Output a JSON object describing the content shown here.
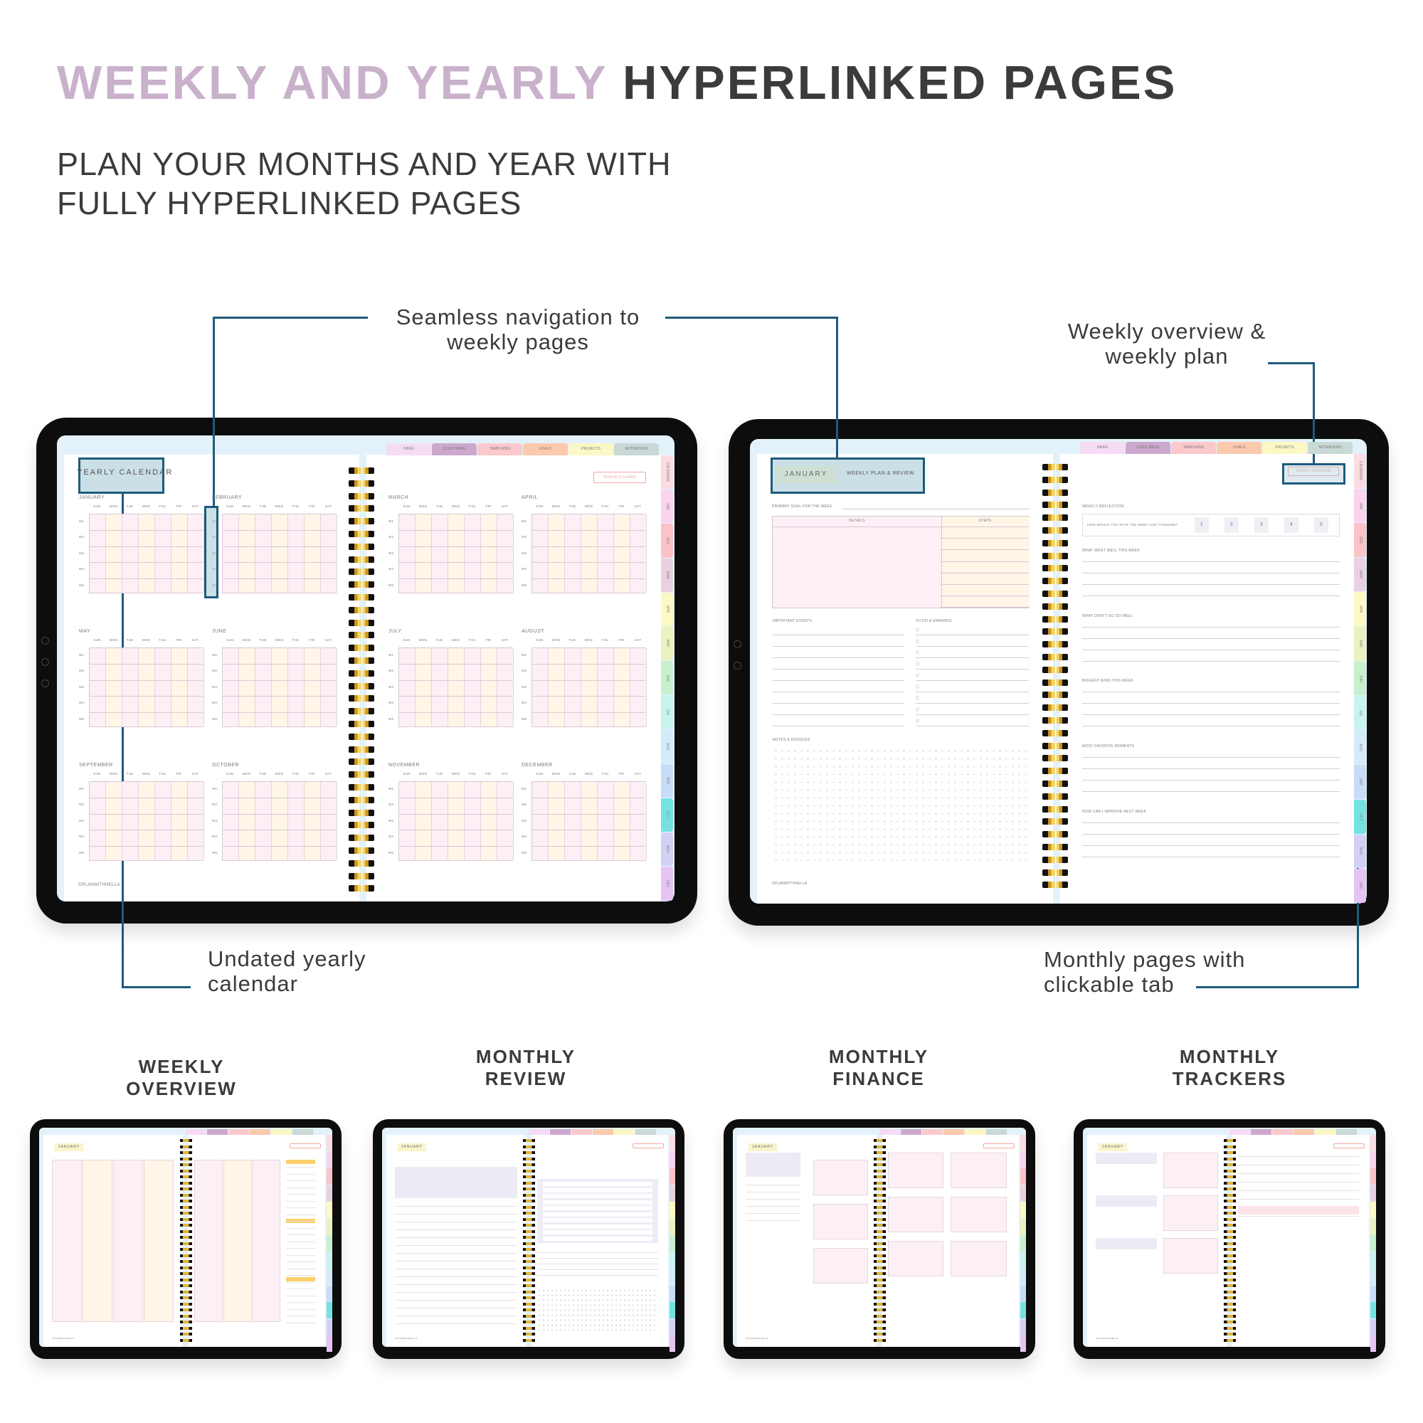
{
  "header": {
    "title_accent": "WEEKLY AND YEARLY",
    "title_main": "HYPERLINKED PAGES",
    "subtitle_line1": "PLAN YOUR MONTHS AND YEAR WITH",
    "subtitle_line2": "FULLY HYPERLINKED PAGES"
  },
  "colors": {
    "accent": "#c9b1cb",
    "text": "#3b3b3b",
    "callout_line": "#1d5b7d"
  },
  "callouts": {
    "navigation": {
      "line1": "Seamless navigation to",
      "line2": "weekly pages"
    },
    "weekly": {
      "line1": "Weekly overview &",
      "line2": "weekly plan"
    },
    "yearly": {
      "line1": "Undated yearly",
      "line2": "calendar"
    },
    "monthly": {
      "line1": "Monthly pages with",
      "line2": "clickable tab"
    }
  },
  "planner": {
    "top_tabs": [
      {
        "label": "INDEX",
        "color": "#f6dbf5"
      },
      {
        "label": "QUICK MENU",
        "color": "#cda8cd"
      },
      {
        "label": "TEMPLATES",
        "color": "#fbc8cc"
      },
      {
        "label": "GOALS",
        "color": "#fcc9ad"
      },
      {
        "label": "PROJECTS",
        "color": "#fbf8c5"
      },
      {
        "label": "NOTEBOOKS",
        "color": "#c8d9d6"
      }
    ],
    "side_tabs": [
      {
        "label": "CALENDAR",
        "color": "#fbdce2"
      },
      {
        "label": "JAN",
        "color": "#f9d3ef"
      },
      {
        "label": "FEB",
        "color": "#fbc3c8"
      },
      {
        "label": "MAR",
        "color": "#e8d2e0"
      },
      {
        "label": "APR",
        "color": "#fdf9c4"
      },
      {
        "label": "MAY",
        "color": "#eaf3c0"
      },
      {
        "label": "JUN",
        "color": "#c7f0cf"
      },
      {
        "label": "JUL",
        "color": "#c8f3ef"
      },
      {
        "label": "AUG",
        "color": "#d3ecf8"
      },
      {
        "label": "SEP",
        "color": "#c7dcf7"
      },
      {
        "label": "OCT",
        "color": "#74e3e0"
      },
      {
        "label": "NOV",
        "color": "#d3d1f3"
      },
      {
        "label": "DEC",
        "color": "#e5c4f2"
      }
    ],
    "footer": "©PLANWITHHELLA"
  },
  "yearly": {
    "title": "YEARLY CALENDAR",
    "button": "YEAR AT A GLANCE",
    "months": [
      "JANUARY",
      "FEBRUARY",
      "MARCH",
      "APRIL",
      "MAY",
      "JUNE",
      "JULY",
      "AUGUST",
      "SEPTEMBER",
      "OCTOBER",
      "NOVEMBER",
      "DECEMBER"
    ],
    "days": [
      "SUN",
      "MON",
      "TUE",
      "WED",
      "THU",
      "FRI",
      "SAT"
    ],
    "weeks": [
      "W1",
      "W2",
      "W3",
      "W4",
      "W5"
    ]
  },
  "weekly": {
    "month": "JANUARY",
    "subtitle": "WEEKLY PLAN & REVIEW",
    "button": "WEEKLY OVERVIEW",
    "primary_goal": "PRIMARY GOAL FOR THE WEEK",
    "details": "DETAILS",
    "steps": "STEPS",
    "important_events": "IMPORTANT EVENTS",
    "todo": "TO DO & ERRANDS",
    "notes": "NOTES & DOODLES",
    "reflection": "WEEKLY REFLECTION",
    "rate_question": "HOW WOULD YOU RATE THE WEEK JUST FINISHED?",
    "ratings": [
      "1",
      "2",
      "3",
      "4",
      "5"
    ],
    "prompts": [
      "WHAT WENT WELL THIS WEEK",
      "WHAT DIDN'T GO SO WELL",
      "BIGGEST WINS THIS WEEK",
      "MOST FAVORITE MOMENTS",
      "HOW CAN I IMPROVE NEXT WEEK"
    ]
  },
  "previews": [
    {
      "line1": "WEEKLY",
      "line2": "OVERVIEW",
      "month": "JANUARY"
    },
    {
      "line1": "MONTHLY",
      "line2": "REVIEW",
      "month": "JANUARY"
    },
    {
      "line1": "MONTHLY",
      "line2": "FINANCE",
      "month": "JANUARY"
    },
    {
      "line1": "MONTHLY",
      "line2": "TRACKERS",
      "month": "JANUARY"
    }
  ]
}
